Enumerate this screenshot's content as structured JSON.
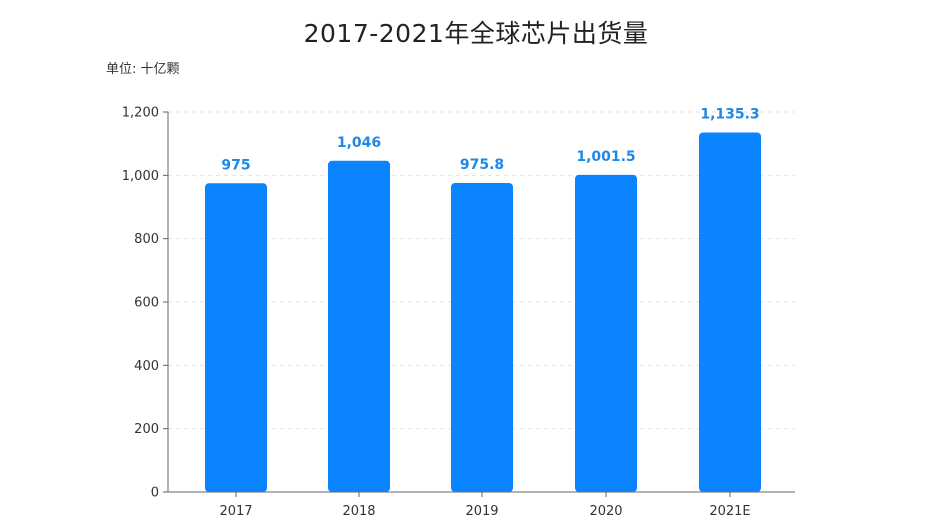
{
  "chart_data": {
    "type": "bar",
    "title": "2017-2021年全球芯片出货量",
    "unit_label": "单位: 十亿颗",
    "categories": [
      "2017",
      "2018",
      "2019",
      "2020",
      "2021E"
    ],
    "values": [
      975,
      1046,
      975.8,
      1001.5,
      1135.3
    ],
    "data_labels": [
      "975",
      "1,046",
      "975.8",
      "1,001.5",
      "1,135.3"
    ],
    "ylim": [
      0,
      1200
    ],
    "yticks": [
      0,
      200,
      400,
      600,
      800,
      1000,
      1200
    ],
    "ytick_labels": [
      "0",
      "200",
      "400",
      "600",
      "800",
      "1,000",
      "1,200"
    ],
    "grid": true,
    "bar_color": "#0a84ff",
    "label_color": "#1e88e5"
  }
}
